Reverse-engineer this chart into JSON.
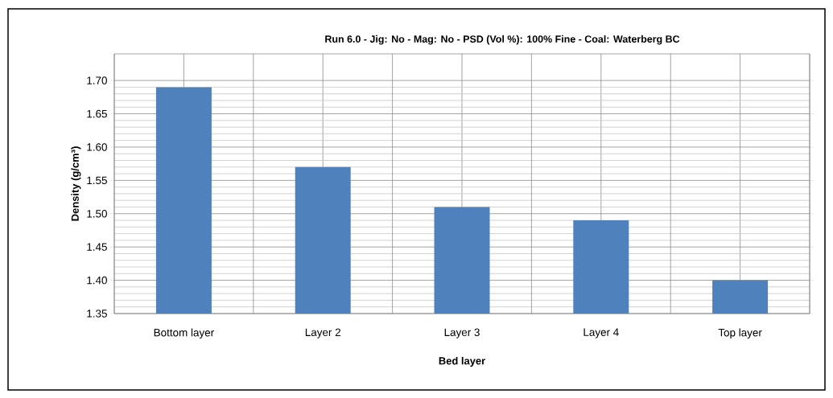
{
  "chart_data": {
    "type": "bar",
    "title": "Run 6.0 - Jig: No - Mag: No - PSD (Vol %): 100% Fine - Coal: Waterberg BC",
    "xlabel": "Bed layer",
    "ylabel": "Density (g/cm³)",
    "categories": [
      "Bottom layer",
      "Layer 2",
      "Layer 3",
      "Layer 4",
      "Top layer"
    ],
    "values": [
      1.69,
      1.57,
      1.51,
      1.49,
      1.4
    ],
    "color": "#4f81bd",
    "ylim": [
      1.35,
      1.74
    ],
    "yticks": [
      {
        "value": 1.35,
        "label": "1.35"
      },
      {
        "value": 1.4,
        "label": "1.40"
      },
      {
        "value": 1.45,
        "label": "1.45"
      },
      {
        "value": 1.5,
        "label": "1.50"
      },
      {
        "value": 1.55,
        "label": "1.55"
      },
      {
        "value": 1.6,
        "label": "1.60"
      },
      {
        "value": 1.65,
        "label": "1.65"
      },
      {
        "value": 1.7,
        "label": "1.70"
      }
    ],
    "grid": true
  }
}
